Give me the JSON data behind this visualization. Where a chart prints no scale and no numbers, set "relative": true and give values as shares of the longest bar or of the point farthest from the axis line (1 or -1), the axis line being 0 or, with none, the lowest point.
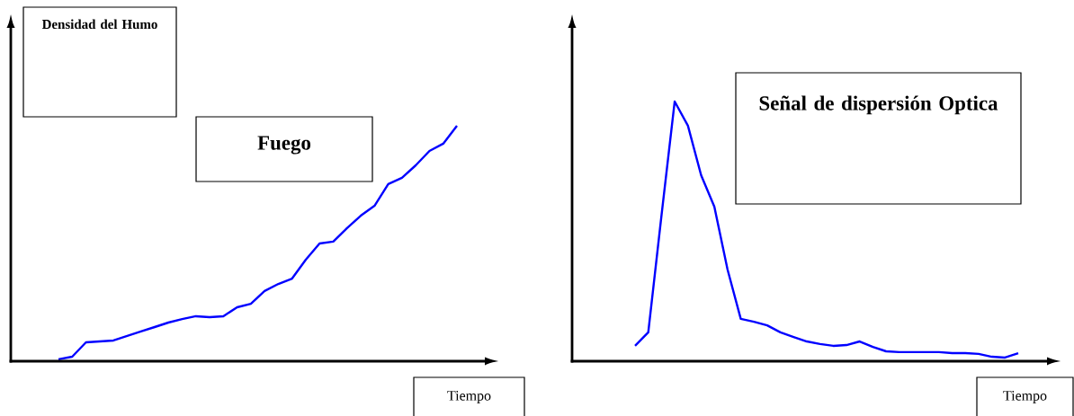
{
  "chart_data": [
    {
      "type": "line",
      "title": "Fuego",
      "ylabel": "Densidad del Humo",
      "xlabel": "Tiempo",
      "relative": true,
      "color": "#0000ff",
      "categories": [
        null,
        null,
        null,
        null,
        null,
        null,
        null,
        null,
        null,
        null,
        null,
        null,
        null,
        null,
        null,
        null,
        null,
        null,
        null,
        null,
        null,
        null,
        null,
        null,
        null,
        null,
        null,
        null,
        null,
        null
      ],
      "values": [
        0.008,
        0.019,
        0.08,
        0.084,
        0.088,
        0.107,
        0.126,
        0.145,
        0.164,
        0.179,
        0.191,
        0.187,
        0.191,
        0.229,
        0.244,
        0.298,
        0.328,
        0.351,
        0.431,
        0.5,
        0.508,
        0.565,
        0.618,
        0.66,
        0.752,
        0.779,
        0.832,
        0.893,
        0.924,
        1
      ]
    },
    {
      "type": "line",
      "title": "Señal de dispersión Optica",
      "xlabel": "Tiempo",
      "relative": true,
      "color": "#0000ff",
      "categories": [
        null,
        null,
        null,
        null,
        null,
        null,
        null,
        null,
        null,
        null,
        null,
        null,
        null,
        null,
        null,
        null,
        null,
        null,
        null,
        null,
        null,
        null,
        null,
        null,
        null,
        null,
        null,
        null,
        null,
        null
      ],
      "values": [
        0.059,
        0.111,
        0.561,
        1,
        0.907,
        0.716,
        0.595,
        0.353,
        0.163,
        0.152,
        0.138,
        0.111,
        0.093,
        0.076,
        0.066,
        0.059,
        0.062,
        0.076,
        0.055,
        0.038,
        0.035,
        0.035,
        0.035,
        0.035,
        0.031,
        0.031,
        0.028,
        0.017,
        0.014,
        0.031
      ]
    }
  ]
}
